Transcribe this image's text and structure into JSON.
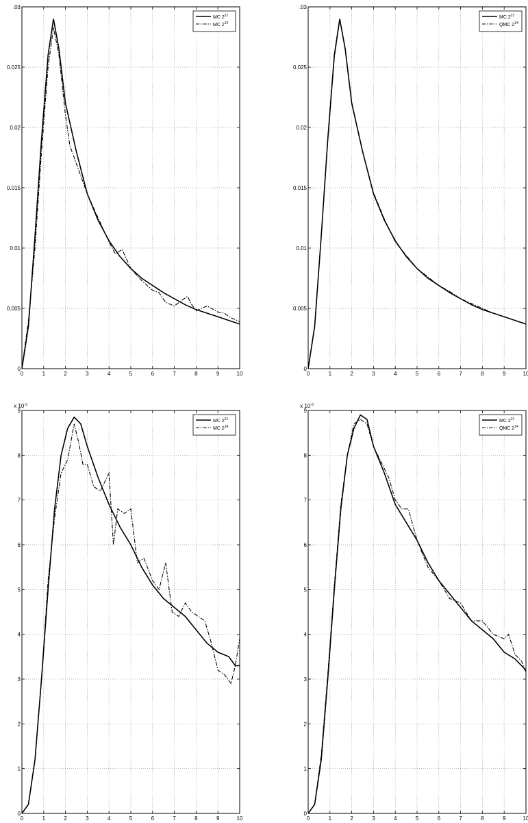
{
  "figure": {
    "background": "#ffffff",
    "line_color": "#000000",
    "grid_color": "#9a9a9a"
  },
  "chart_data": [
    {
      "type": "line",
      "xlim": [
        0,
        10
      ],
      "ylim": [
        0,
        0.03
      ],
      "grid": true,
      "legend_location": "top-right",
      "x_ticks": [
        "0",
        "1",
        "2",
        "3",
        "4",
        "5",
        "6",
        "7",
        "8",
        "9",
        "10"
      ],
      "y_ticks": [
        "0",
        "0.005",
        "0.01",
        "0.015",
        "0.02",
        "0.025",
        ".03"
      ],
      "y_multiplier": null,
      "series": [
        {
          "name": "MC 2^21",
          "style": "solid",
          "x": [
            0,
            0.3,
            0.6,
            0.9,
            1.2,
            1.45,
            1.7,
            2.0,
            2.5,
            3.0,
            3.5,
            4.0,
            4.5,
            5.0,
            5.5,
            6.0,
            6.5,
            7.0,
            7.5,
            8.0,
            8.5,
            9.0,
            9.5,
            10.0
          ],
          "y": [
            0,
            0.0035,
            0.011,
            0.019,
            0.026,
            0.029,
            0.0265,
            0.022,
            0.018,
            0.0145,
            0.0123,
            0.0106,
            0.0093,
            0.0083,
            0.0075,
            0.0069,
            0.0063,
            0.0058,
            0.0053,
            0.0049,
            0.0046,
            0.0043,
            0.004,
            0.0037
          ]
        },
        {
          "name": "MC 2^14",
          "style": "dashdot",
          "x": [
            0,
            0.3,
            0.6,
            0.9,
            1.2,
            1.45,
            1.7,
            2.0,
            2.2,
            2.5,
            3.0,
            3.5,
            4.0,
            4.3,
            4.6,
            5.0,
            5.5,
            6.0,
            6.3,
            6.6,
            7.0,
            7.3,
            7.6,
            7.8,
            8.0,
            8.5,
            9.0,
            9.3,
            9.5,
            10.0
          ],
          "y": [
            0,
            0.004,
            0.01,
            0.018,
            0.025,
            0.0283,
            0.026,
            0.021,
            0.0185,
            0.017,
            0.0145,
            0.0125,
            0.0105,
            0.0095,
            0.0099,
            0.0083,
            0.0073,
            0.0065,
            0.0063,
            0.0055,
            0.0052,
            0.0056,
            0.006,
            0.0053,
            0.0048,
            0.0052,
            0.0047,
            0.0046,
            0.0043,
            0.0039
          ]
        }
      ]
    },
    {
      "type": "line",
      "xlim": [
        0,
        10
      ],
      "ylim": [
        0,
        0.03
      ],
      "grid": true,
      "legend_location": "top-right",
      "x_ticks": [
        "0",
        "1",
        "2",
        "3",
        "4",
        "5",
        "6",
        "7",
        "8",
        "9",
        "10"
      ],
      "y_ticks": [
        "0",
        "0.005",
        "0.01",
        "0.015",
        "0.02",
        "0.025",
        ".03"
      ],
      "y_multiplier": null,
      "series": [
        {
          "name": "MC 2^21",
          "style": "solid",
          "x": [
            0,
            0.3,
            0.6,
            0.9,
            1.2,
            1.45,
            1.7,
            2.0,
            2.5,
            3.0,
            3.5,
            4.0,
            4.5,
            5.0,
            5.5,
            6.0,
            6.5,
            7.0,
            7.5,
            8.0,
            8.5,
            9.0,
            9.5,
            10.0
          ],
          "y": [
            0,
            0.0035,
            0.011,
            0.019,
            0.026,
            0.029,
            0.0265,
            0.022,
            0.018,
            0.0145,
            0.0123,
            0.0106,
            0.0093,
            0.0083,
            0.0075,
            0.0069,
            0.0063,
            0.0058,
            0.0053,
            0.0049,
            0.0046,
            0.0043,
            0.004,
            0.0037
          ]
        },
        {
          "name": "QMC 2^14",
          "style": "dashdot",
          "x": [
            0,
            0.3,
            0.6,
            0.9,
            1.2,
            1.45,
            1.7,
            2.0,
            2.5,
            3.0,
            3.5,
            4.0,
            4.5,
            5.0,
            5.5,
            6.0,
            6.5,
            7.0,
            7.5,
            8.0,
            8.5,
            9.0,
            9.5,
            10.0
          ],
          "y": [
            0,
            0.0036,
            0.011,
            0.0188,
            0.0258,
            0.0289,
            0.0266,
            0.0221,
            0.018,
            0.0146,
            0.0124,
            0.0105,
            0.0094,
            0.0083,
            0.0076,
            0.0069,
            0.0064,
            0.0058,
            0.0054,
            0.005,
            0.0046,
            0.0043,
            0.004,
            0.0037
          ]
        }
      ]
    },
    {
      "type": "line",
      "xlim": [
        0,
        10
      ],
      "ylim": [
        0,
        9
      ],
      "grid": true,
      "legend_location": "top-right",
      "x_ticks": [
        "0",
        "1",
        "2",
        "3",
        "4",
        "5",
        "6",
        "7",
        "8",
        "9",
        "10"
      ],
      "y_ticks": [
        "0",
        "1",
        "2",
        "3",
        "4",
        "5",
        "6",
        "7",
        "8",
        "9"
      ],
      "y_multiplier": {
        "base": "x 10",
        "exp": "-3"
      },
      "series": [
        {
          "name": "MC 2^21",
          "style": "solid",
          "x": [
            0,
            0.3,
            0.6,
            0.9,
            1.2,
            1.5,
            1.8,
            2.1,
            2.4,
            2.7,
            3.0,
            3.5,
            4.0,
            4.5,
            5.0,
            5.5,
            6.0,
            6.5,
            7.0,
            7.5,
            8.0,
            8.5,
            9.0,
            9.5,
            9.8,
            10.0
          ],
          "y": [
            0,
            0.2,
            1.2,
            3.0,
            5.0,
            6.8,
            8.0,
            8.6,
            8.85,
            8.7,
            8.2,
            7.5,
            6.9,
            6.4,
            6.0,
            5.5,
            5.1,
            4.8,
            4.6,
            4.4,
            4.1,
            3.8,
            3.6,
            3.5,
            3.3,
            3.3
          ]
        },
        {
          "name": "MC 2^14",
          "style": "dashdot",
          "x": [
            0,
            0.3,
            0.6,
            0.9,
            1.2,
            1.5,
            1.8,
            2.1,
            2.4,
            2.6,
            2.8,
            3.0,
            3.3,
            3.6,
            4.0,
            4.2,
            4.4,
            4.7,
            5.0,
            5.3,
            5.6,
            6.0,
            6.3,
            6.6,
            6.9,
            7.2,
            7.5,
            7.8,
            8.1,
            8.4,
            8.7,
            9.0,
            9.3,
            9.6,
            9.8,
            10.0
          ],
          "y": [
            0,
            0.2,
            1.2,
            3.0,
            5.2,
            6.6,
            7.6,
            7.9,
            8.7,
            8.3,
            7.8,
            7.8,
            7.3,
            7.2,
            7.6,
            6.0,
            6.8,
            6.7,
            6.8,
            5.6,
            5.7,
            5.2,
            5.0,
            5.6,
            4.5,
            4.4,
            4.7,
            4.5,
            4.4,
            4.3,
            3.8,
            3.2,
            3.1,
            2.9,
            3.3,
            3.9
          ]
        }
      ]
    },
    {
      "type": "line",
      "xlim": [
        0,
        10
      ],
      "ylim": [
        0,
        9
      ],
      "grid": true,
      "legend_location": "top-right",
      "x_ticks": [
        "0",
        "1",
        "2",
        "3",
        "4",
        "5",
        "6",
        "7",
        "8",
        "9",
        "10"
      ],
      "y_ticks": [
        "0",
        "1",
        "2",
        "3",
        "4",
        "5",
        "6",
        "7",
        "8",
        "9"
      ],
      "y_multiplier": {
        "base": "x 10",
        "exp": "-3"
      },
      "series": [
        {
          "name": "MC 2^21",
          "style": "solid",
          "x": [
            0,
            0.3,
            0.6,
            0.9,
            1.2,
            1.5,
            1.8,
            2.1,
            2.4,
            2.7,
            3.0,
            3.5,
            4.0,
            4.5,
            5.0,
            5.5,
            6.0,
            6.5,
            7.0,
            7.5,
            8.0,
            8.5,
            9.0,
            9.5,
            9.8,
            10.0
          ],
          "y": [
            0,
            0.2,
            1.2,
            3.0,
            5.0,
            6.8,
            8.0,
            8.6,
            8.9,
            8.8,
            8.2,
            7.6,
            6.9,
            6.5,
            6.1,
            5.6,
            5.2,
            4.9,
            4.6,
            4.3,
            4.1,
            3.9,
            3.6,
            3.45,
            3.3,
            3.2
          ]
        },
        {
          "name": "QMC 2^14",
          "style": "dashdot",
          "x": [
            0,
            0.3,
            0.6,
            0.9,
            1.2,
            1.5,
            1.8,
            2.1,
            2.4,
            2.7,
            3.0,
            3.3,
            3.7,
            4.0,
            4.3,
            4.6,
            5.0,
            5.5,
            6.0,
            6.5,
            7.0,
            7.5,
            8.0,
            8.5,
            9.0,
            9.2,
            9.5,
            9.8,
            10.0
          ],
          "y": [
            0,
            0.2,
            1.3,
            3.1,
            5.1,
            6.9,
            8.0,
            8.7,
            8.8,
            8.7,
            8.2,
            7.9,
            7.5,
            7.0,
            6.8,
            6.8,
            6.1,
            5.5,
            5.2,
            4.8,
            4.7,
            4.3,
            4.3,
            4.0,
            3.9,
            4.0,
            3.55,
            3.4,
            3.15
          ]
        }
      ]
    }
  ]
}
